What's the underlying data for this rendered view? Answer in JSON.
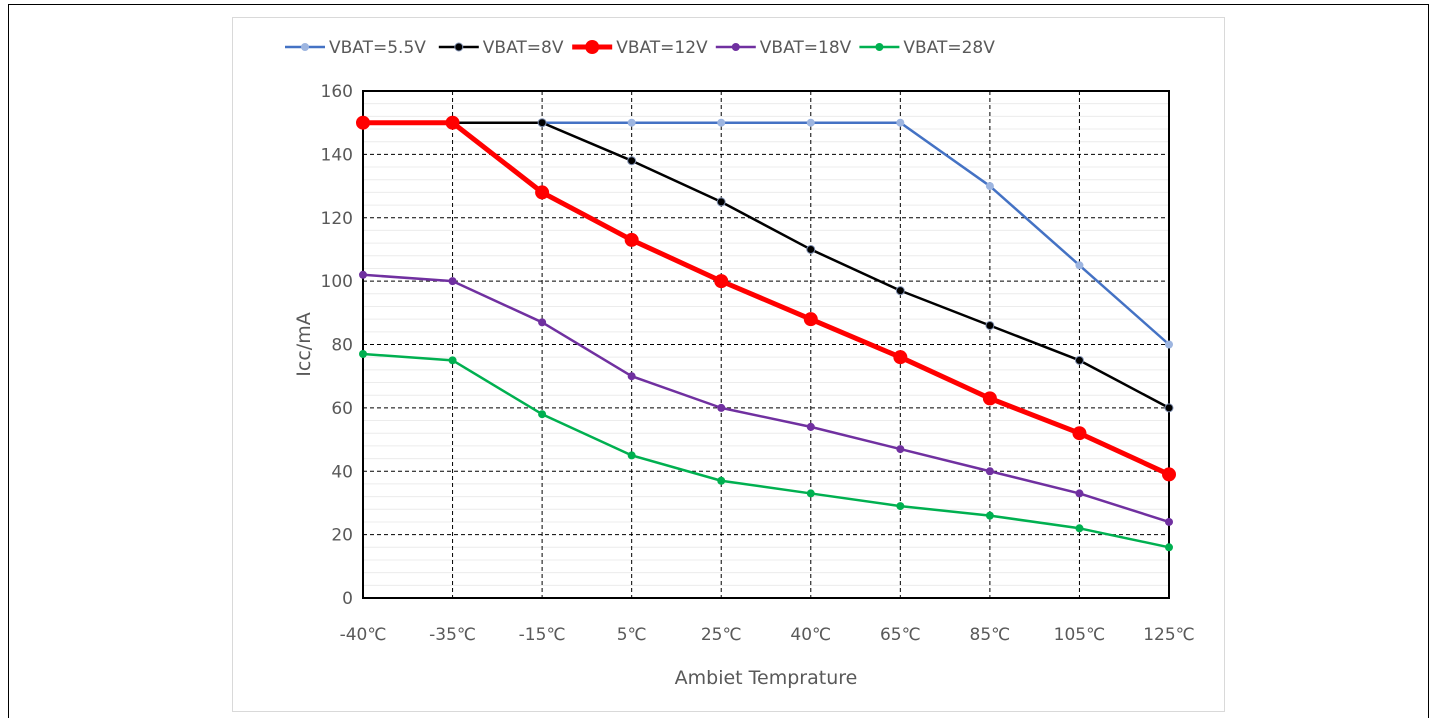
{
  "chart_data": {
    "type": "line",
    "xlabel": "Ambiet Temprature",
    "ylabel": "Icc/mA",
    "categories": [
      "-40℃",
      "-35℃",
      "-15℃",
      "5℃",
      "25℃",
      "40℃",
      "65℃",
      "85℃",
      "105℃",
      "125℃"
    ],
    "ylim": [
      0,
      160
    ],
    "yticks": [
      0,
      20,
      40,
      60,
      80,
      100,
      120,
      140,
      160
    ],
    "grid": true,
    "legend_position": "top",
    "series": [
      {
        "name": "VBAT=5.5V",
        "color": "#4472c4",
        "marker_color": "#9db5e0",
        "values": [
          null,
          null,
          150,
          150,
          150,
          150,
          150,
          130,
          105,
          80
        ]
      },
      {
        "name": "VBAT=8V",
        "color": "#000000",
        "marker_color": "#000000",
        "values": [
          null,
          150,
          150,
          138,
          125,
          110,
          97,
          86,
          75,
          60
        ]
      },
      {
        "name": "VBAT=12V",
        "color": "#ff0000",
        "marker_color": "#ff0000",
        "values": [
          150,
          150,
          128,
          113,
          100,
          88,
          76,
          63,
          52,
          39
        ]
      },
      {
        "name": "VBAT=18V",
        "color": "#7030a0",
        "marker_color": "#7030a0",
        "values": [
          102,
          100,
          87,
          70,
          60,
          54,
          47,
          40,
          33,
          24
        ]
      },
      {
        "name": "VBAT=28V",
        "color": "#00b050",
        "marker_color": "#00b050",
        "values": [
          77,
          75,
          58,
          45,
          37,
          33,
          29,
          26,
          22,
          16
        ]
      }
    ]
  }
}
